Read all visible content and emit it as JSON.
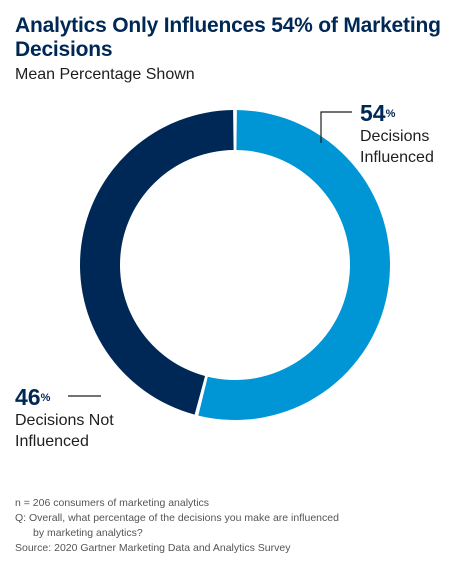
{
  "title": "Analytics Only Influences 54% of Marketing Decisions",
  "subtitle": "Mean Percentage Shown",
  "colors": {
    "influenced": "#0096d6",
    "not_influenced": "#002856",
    "title": "#002856",
    "leader": "#1e1e1e"
  },
  "chart_data": {
    "type": "pie",
    "style": "donut",
    "title": "Analytics Only Influences 54% of Marketing Decisions",
    "subtitle": "Mean Percentage Shown",
    "categories": [
      "Decisions Influenced",
      "Decisions Not Influenced"
    ],
    "values": [
      54,
      46
    ],
    "unit": "%"
  },
  "callouts": {
    "influenced": {
      "value": "54",
      "unit": "%",
      "line1": "Decisions",
      "line2": "Influenced"
    },
    "not_influenced": {
      "value": "46",
      "unit": "%",
      "line1": "Decisions Not",
      "line2": "Influenced"
    }
  },
  "notes": {
    "n": "n = 206 consumers of marketing analytics",
    "q1": "Q: Overall, what percentage of the decisions you make are influenced",
    "q2": "by marketing analytics?",
    "source": "Source: 2020 Gartner Marketing Data and Analytics Survey"
  }
}
